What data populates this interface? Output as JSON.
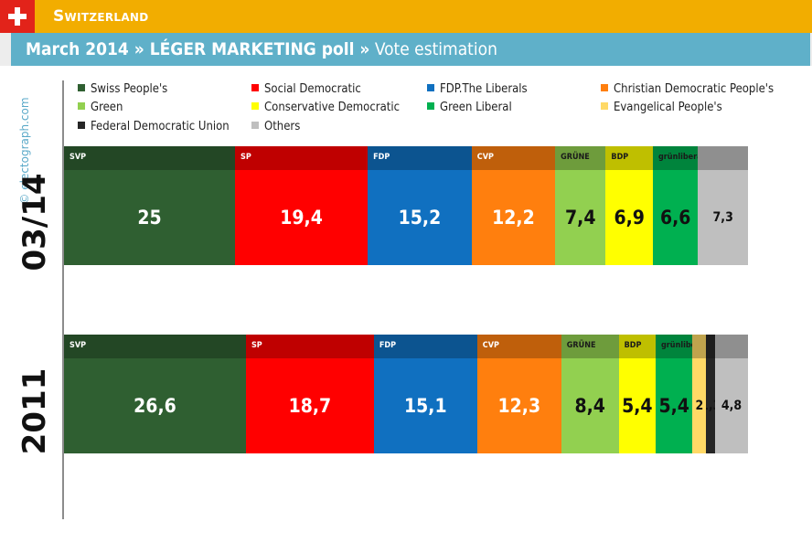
{
  "header": {
    "country": "Switzerland",
    "subtitle_bold": "March 2014 » LÉGER MARKETING poll »",
    "subtitle_rest": " Vote estimation"
  },
  "watermark": "© electograph.com",
  "chart_data": {
    "type": "bar",
    "stacked": true,
    "orientation": "horizontal",
    "title": "March 2014 » LÉGER MARKETING poll » Vote estimation",
    "categories": [
      "03/14",
      "2011"
    ],
    "legend_position": "top",
    "series": [
      {
        "name": "Swiss People's",
        "color": "#2f5f31",
        "logo": "SVP",
        "values": [
          25,
          26.6
        ],
        "labels": [
          "25",
          "26,6"
        ],
        "text_color": "#ffffff"
      },
      {
        "name": "Social Democratic",
        "color": "#ff0000",
        "logo": "SP",
        "values": [
          19.4,
          18.7
        ],
        "labels": [
          "19,4",
          "18,7"
        ],
        "text_color": "#ffffff"
      },
      {
        "name": "FDP.The Liberals",
        "color": "#1070c0",
        "logo": "FDP",
        "values": [
          15.2,
          15.1
        ],
        "labels": [
          "15,2",
          "15,1"
        ],
        "text_color": "#ffffff"
      },
      {
        "name": "Christian Democratic People's",
        "color": "#ff7f0e",
        "logo": "CVP",
        "values": [
          12.2,
          12.3
        ],
        "labels": [
          "12,2",
          "12,3"
        ],
        "text_color": "#ffffff"
      },
      {
        "name": "Green",
        "color": "#92d050",
        "logo": "GRÜNE",
        "values": [
          7.4,
          8.4
        ],
        "labels": [
          "7,4",
          "8,4"
        ],
        "text_color": "#111111"
      },
      {
        "name": "Conservative Democratic",
        "color": "#ffff00",
        "logo": "BDP",
        "values": [
          6.9,
          5.4
        ],
        "labels": [
          "6,9",
          "5,4"
        ],
        "text_color": "#111111"
      },
      {
        "name": "Green Liberal",
        "color": "#00b050",
        "logo": "grünliberale",
        "values": [
          6.6,
          5.4
        ],
        "labels": [
          "6,6",
          "5,4"
        ],
        "text_color": "#111111"
      },
      {
        "name": "Evangelical People's",
        "color": "#ffd966",
        "logo": "",
        "values": [
          0,
          2
        ],
        "labels": [
          "",
          "2"
        ],
        "text_color": "#111111"
      },
      {
        "name": "Federal Democratic Union",
        "color": "#262626",
        "logo": "",
        "values": [
          0,
          1.3
        ],
        "labels": [
          "",
          "1,3"
        ],
        "text_color": "#111111"
      },
      {
        "name": "Others",
        "color": "#bfbfbf",
        "logo": "",
        "values": [
          7.3,
          4.8
        ],
        "labels": [
          "7,3",
          "4,8"
        ],
        "text_color": "#111111"
      }
    ]
  }
}
